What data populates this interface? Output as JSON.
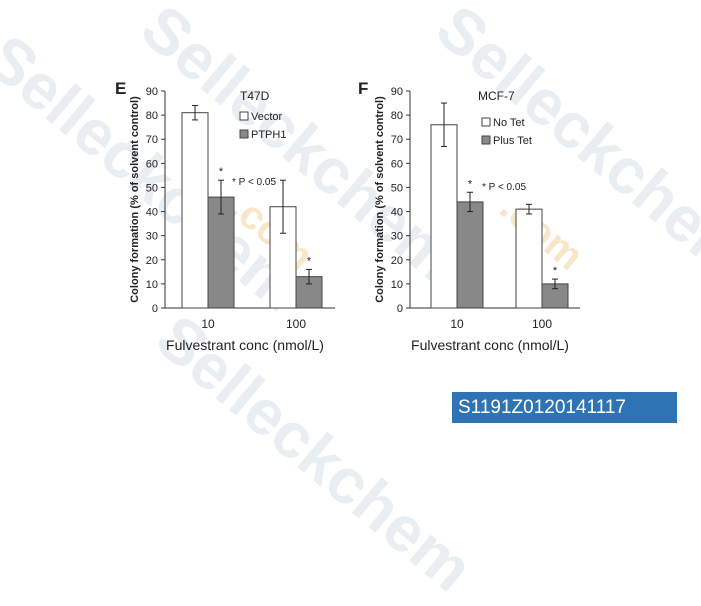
{
  "watermark": {
    "text": "Selleckchem",
    "suffix": ".com"
  },
  "catalog_id": "S1191Z0120141117",
  "chart_data": [
    {
      "type": "bar",
      "panel_label": "E",
      "cell_line": "T47D",
      "categories": [
        "10",
        "100"
      ],
      "xlabel": "Fulvestrant conc (nmol/L)",
      "ylabel": "Colony formation (% of solvent control)",
      "ylim": [
        0,
        90
      ],
      "yticks": [
        0,
        10,
        20,
        30,
        40,
        50,
        60,
        70,
        80,
        90
      ],
      "series": [
        {
          "name": "Vector",
          "values": [
            81,
            42
          ],
          "errors": [
            3,
            11
          ],
          "color": "#ffffff"
        },
        {
          "name": "PTPH1",
          "values": [
            46,
            13
          ],
          "errors": [
            7,
            3
          ],
          "color": "#888888"
        }
      ],
      "significance_marks": [
        "*",
        "*"
      ],
      "note": "* P < 0.05",
      "legend_position": "top-right"
    },
    {
      "type": "bar",
      "panel_label": "F",
      "cell_line": "MCF-7",
      "categories": [
        "10",
        "100"
      ],
      "xlabel": "Fulvestrant conc (nmol/L)",
      "ylabel": "Colony formation (% of solvent control)",
      "ylim": [
        0,
        90
      ],
      "yticks": [
        0,
        10,
        20,
        30,
        40,
        50,
        60,
        70,
        80,
        90
      ],
      "series": [
        {
          "name": "No Tet",
          "values": [
            76,
            41
          ],
          "errors": [
            9,
            2
          ],
          "color": "#ffffff"
        },
        {
          "name": "Plus Tet",
          "values": [
            44,
            10
          ],
          "errors": [
            4,
            2
          ],
          "color": "#888888"
        }
      ],
      "significance_marks": [
        "*",
        "*"
      ],
      "note": "* P < 0.05",
      "legend_position": "top-right"
    }
  ]
}
